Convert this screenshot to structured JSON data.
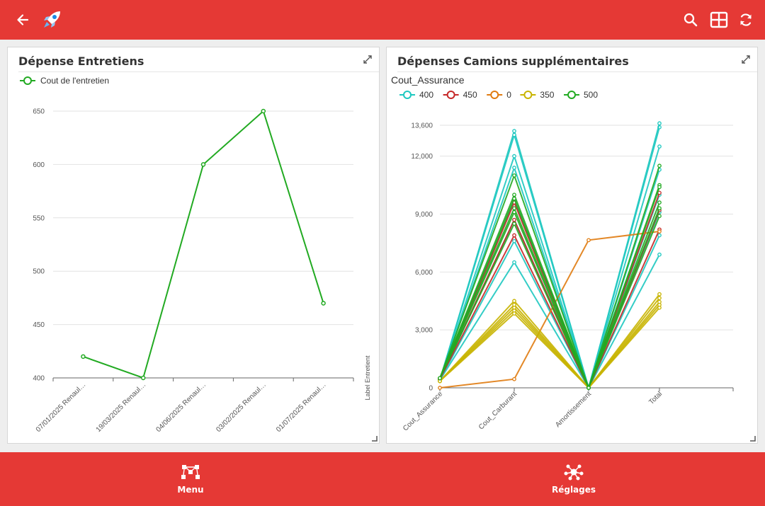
{
  "colors": {
    "brand": "#e53935",
    "white": "#ffffff"
  },
  "toolbar": {
    "back_icon": "arrow-left-icon",
    "logo_icon": "rocket-icon",
    "search_icon": "search-icon",
    "layout_icon": "grid-layout-icon",
    "refresh_icon": "refresh-icon"
  },
  "card1": {
    "title": "Dépense Entretiens",
    "chart_data": {
      "type": "line",
      "title": "Dépense Entretiens",
      "categories": [
        "07/01/2025 Renaul…",
        "19/03/2025 Renaul…",
        "04/06/2025 Renaul…",
        "03/02/2025 Renaul…",
        "01/07/2025 Renaul…"
      ],
      "series": [
        {
          "name": "Cout de l'entretien",
          "color": "#22aa22",
          "values": [
            420,
            400,
            600,
            650,
            470
          ]
        }
      ],
      "ylim": [
        400,
        650
      ],
      "yticks": [
        400,
        450,
        500,
        550,
        600,
        650
      ],
      "ylabel": "",
      "xlabel": "Label Entretient",
      "grid": true,
      "legend": "top-left"
    }
  },
  "card2": {
    "title": "Dépenses Camions supplémentaires",
    "chart_data": {
      "type": "line",
      "subtype": "parallel-coordinates",
      "title": "Dépenses Camions supplémentaires",
      "legend_title": "Cout_Assurance",
      "legend": "top-left",
      "axes": [
        "Cout_Assurance",
        "Cout_Carburant",
        "Amortissement",
        "Total"
      ],
      "ylim": [
        0,
        13600
      ],
      "yticks": [
        0,
        3000,
        6000,
        9000,
        12000,
        13600
      ],
      "ytick_labels": [
        "0",
        "3,000",
        "6,000",
        "9,000",
        "12,000",
        "13,600"
      ],
      "grid": true,
      "series": [
        {
          "name": "400",
          "color": "#1dc8c0",
          "lines": [
            [
              400,
              13300,
              0,
              13500
            ],
            [
              400,
              13100,
              0,
              13700
            ],
            [
              400,
              12000,
              0,
              12500
            ],
            [
              400,
              11400,
              0,
              11300
            ],
            [
              400,
              9700,
              0,
              10000
            ],
            [
              400,
              8700,
              0,
              9100
            ],
            [
              400,
              7600,
              0,
              7900
            ],
            [
              400,
              6500,
              0,
              6900
            ]
          ]
        },
        {
          "name": "450",
          "color": "#c62828",
          "lines": [
            [
              450,
              9600,
              0,
              10100
            ],
            [
              450,
              7900,
              0,
              8200
            ],
            [
              450,
              8700,
              0,
              9200
            ]
          ]
        },
        {
          "name": "0",
          "color": "#e07b10",
          "lines": [
            [
              0,
              450,
              7650,
              8100
            ]
          ]
        },
        {
          "name": "350",
          "color": "#c8b400",
          "lines": [
            [
              350,
              4500,
              0,
              4850
            ],
            [
              350,
              4300,
              0,
              4650
            ],
            [
              350,
              4150,
              0,
              4450
            ],
            [
              350,
              4000,
              0,
              4300
            ],
            [
              350,
              3850,
              0,
              4150
            ]
          ]
        },
        {
          "name": "500",
          "color": "#22aa22",
          "lines": [
            [
              500,
              11000,
              0,
              11500
            ],
            [
              500,
              10000,
              0,
              10500
            ],
            [
              500,
              9800,
              0,
              10400
            ],
            [
              500,
              9300,
              0,
              9600
            ],
            [
              500,
              9100,
              0,
              9300
            ],
            [
              500,
              8500,
              0,
              8900
            ]
          ]
        }
      ]
    }
  },
  "bottom_nav": {
    "menu_label": "Menu",
    "settings_label": "Réglages",
    "menu_icon": "workflow-icon",
    "settings_icon": "network-icon"
  }
}
